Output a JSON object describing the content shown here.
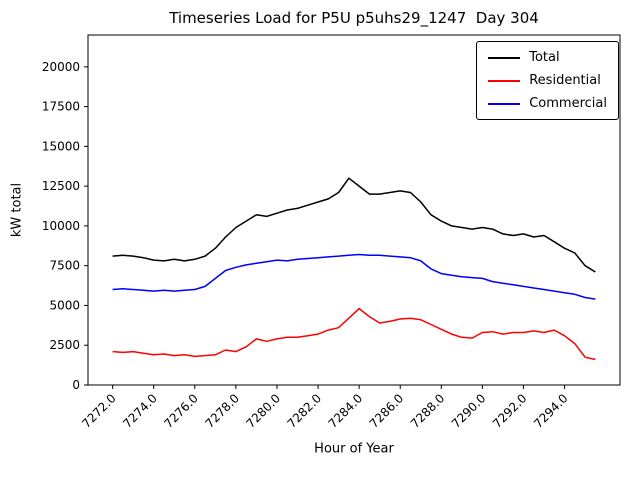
{
  "chart_data": {
    "type": "line",
    "title": "Timeseries Load for P5U p5uhs29_1247  Day 304",
    "xlabel": "Hour of Year",
    "ylabel": "kW total",
    "xlim": [
      7270.8,
      7296.7
    ],
    "ylim": [
      0,
      22000
    ],
    "xticks": [
      7272,
      7274,
      7276,
      7278,
      7280,
      7282,
      7284,
      7286,
      7288,
      7290,
      7292,
      7294
    ],
    "yticks": [
      0,
      2500,
      5000,
      7500,
      10000,
      12500,
      15000,
      17500,
      20000
    ],
    "grid": false,
    "legend_position": "upper right",
    "x": [
      7272,
      7272.5,
      7273,
      7273.5,
      7274,
      7274.5,
      7275,
      7275.5,
      7276,
      7276.5,
      7277,
      7277.5,
      7278,
      7278.5,
      7279,
      7279.5,
      7280,
      7280.5,
      7281,
      7281.5,
      7282,
      7282.5,
      7283,
      7283.5,
      7284,
      7284.5,
      7285,
      7285.5,
      7286,
      7286.5,
      7287,
      7287.5,
      7288,
      7288.5,
      7289,
      7289.5,
      7290,
      7290.5,
      7291,
      7291.5,
      7292,
      7292.5,
      7293,
      7293.5,
      7294,
      7294.5,
      7295,
      7295.5
    ],
    "series": [
      {
        "name": "Total",
        "color": "#000000",
        "values": [
          8100,
          8150,
          8100,
          8000,
          7850,
          7800,
          7900,
          7800,
          7900,
          8100,
          8600,
          9300,
          9900,
          10300,
          10700,
          10600,
          10800,
          11000,
          11100,
          11300,
          11500,
          11700,
          12100,
          13000,
          12500,
          12000,
          12000,
          12100,
          12200,
          12100,
          11500,
          10700,
          10300,
          10000,
          9900,
          9800,
          9900,
          9800,
          9500,
          9400,
          9500,
          9300,
          9400,
          9000,
          8600,
          8300,
          7500,
          7100
        ]
      },
      {
        "name": "Residential",
        "color": "#ff0000",
        "values": [
          2100,
          2050,
          2100,
          2000,
          1900,
          1950,
          1850,
          1900,
          1800,
          1850,
          1900,
          2200,
          2100,
          2400,
          2900,
          2750,
          2900,
          3000,
          3000,
          3100,
          3200,
          3450,
          3600,
          4200,
          4800,
          4300,
          3900,
          4000,
          4150,
          4200,
          4100,
          3800,
          3500,
          3200,
          3000,
          2950,
          3300,
          3350,
          3200,
          3300,
          3300,
          3400,
          3300,
          3450,
          3100,
          2600,
          1750,
          1600
        ]
      },
      {
        "name": "Commercial",
        "color": "#0000ff",
        "values": [
          6000,
          6050,
          6000,
          5950,
          5900,
          5950,
          5900,
          5950,
          6000,
          6200,
          6700,
          7200,
          7400,
          7550,
          7650,
          7750,
          7850,
          7800,
          7900,
          7950,
          8000,
          8050,
          8100,
          8150,
          8200,
          8150,
          8150,
          8100,
          8050,
          8000,
          7800,
          7300,
          7000,
          6900,
          6800,
          6750,
          6700,
          6500,
          6400,
          6300,
          6200,
          6100,
          6000,
          5900,
          5800,
          5700,
          5500,
          5400
        ]
      }
    ]
  }
}
